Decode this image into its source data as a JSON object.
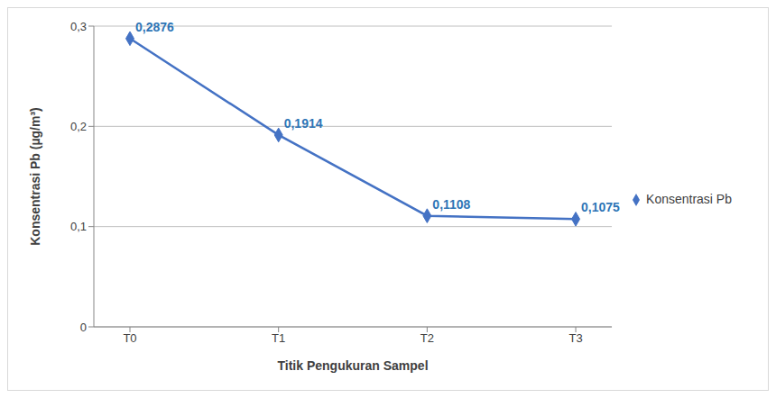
{
  "chart_data": {
    "type": "line",
    "x_label": "Titik Pengukuran Sampel",
    "y_label": "Konsentrasi Pb (µg/m³)",
    "categories": [
      "T0",
      "T1",
      "T2",
      "T3"
    ],
    "series": [
      {
        "name": "Konsentrasi Pb",
        "color": "#4472c4",
        "marker": "diamond",
        "values": [
          0.2876,
          0.1914,
          0.1108,
          0.1075
        ],
        "value_labels": [
          "0,2876",
          "0,1914",
          "0,1108",
          "0,1075"
        ]
      }
    ],
    "ylim": [
      0,
      0.3
    ],
    "yticks": [
      0,
      {
        "value": 0.1,
        "label": "0,1"
      },
      {
        "value": 0.2,
        "label": "0,2"
      },
      {
        "value": 0.3,
        "label": "0,3"
      }
    ],
    "grid": true,
    "legend": "right",
    "data_labels": true
  }
}
